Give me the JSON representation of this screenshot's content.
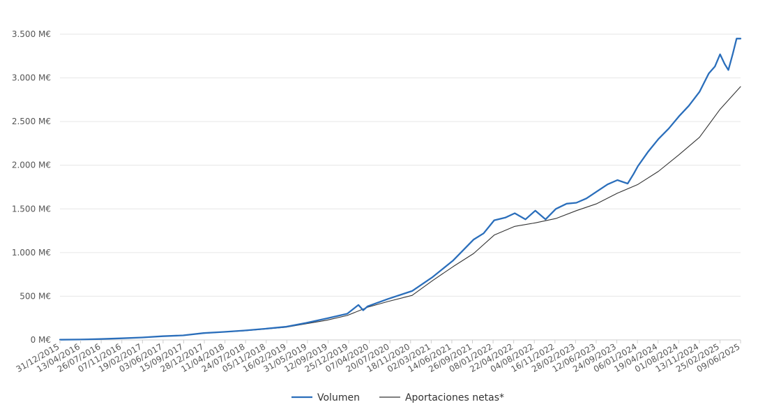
{
  "chart_data": {
    "type": "line",
    "title": "",
    "xlabel": "",
    "ylabel": "",
    "ylim": [
      0,
      3500
    ],
    "yticks": [
      0,
      500,
      1000,
      1500,
      2000,
      2500,
      3000,
      3500
    ],
    "ytick_labels": [
      "0 M€",
      "500 M€",
      "1.000 M€",
      "1.500 M€",
      "2.000 M€",
      "2.500 M€",
      "3.000 M€",
      "3.500 M€"
    ],
    "xtick_labels": [
      "31/12/2015",
      "13/04/2016",
      "26/07/2016",
      "07/11/2016",
      "19/02/2017",
      "03/06/2017",
      "15/09/2017",
      "28/12/2017",
      "11/04/2018",
      "24/07/2018",
      "05/11/2018",
      "16/02/2019",
      "31/05/2019",
      "12/09/2019",
      "25/12/2019",
      "07/04/2020",
      "20/07/2020",
      "18/11/2020",
      "02/03/2021",
      "14/06/2021",
      "26/09/2021",
      "08/01/2022",
      "22/04/2022",
      "04/08/2022",
      "16/11/2022",
      "28/02/2023",
      "12/06/2023",
      "24/09/2023",
      "06/01/2024",
      "19/04/2024",
      "01/08/2024",
      "13/11/2024",
      "25/02/2025",
      "09/06/2025"
    ],
    "grid": true,
    "legend_position": "bottom",
    "colors": {
      "volumen": "#2a6ebb",
      "aportaciones": "#333333",
      "grid": "#e6e6e6",
      "axis": "#cccccc"
    },
    "series": [
      {
        "name": "Volumen",
        "x": [
          "2015-12-31",
          "2016-04-13",
          "2016-07-26",
          "2016-11-07",
          "2017-02-19",
          "2017-06-03",
          "2017-09-15",
          "2017-12-28",
          "2018-04-11",
          "2018-07-24",
          "2018-11-05",
          "2019-02-16",
          "2019-05-31",
          "2019-09-12",
          "2019-12-25",
          "2020-02-20",
          "2020-03-15",
          "2020-04-07",
          "2020-07-20",
          "2020-11-18",
          "2021-03-02",
          "2021-06-14",
          "2021-09-26",
          "2021-11-15",
          "2022-01-08",
          "2022-03-05",
          "2022-04-22",
          "2022-06-15",
          "2022-08-04",
          "2022-09-25",
          "2022-11-16",
          "2023-01-10",
          "2023-02-28",
          "2023-04-20",
          "2023-06-12",
          "2023-08-05",
          "2023-09-24",
          "2023-11-15",
          "2023-12-15",
          "2024-01-06",
          "2024-02-25",
          "2024-04-19",
          "2024-06-10",
          "2024-08-01",
          "2024-09-20",
          "2024-11-13",
          "2024-12-30",
          "2025-01-30",
          "2025-02-25",
          "2025-03-20",
          "2025-04-08",
          "2025-05-01",
          "2025-05-20",
          "2025-06-09"
        ],
        "values": [
          2,
          5,
          10,
          18,
          28,
          42,
          52,
          78,
          92,
          108,
          128,
          150,
          195,
          245,
          300,
          400,
          340,
          385,
          470,
          560,
          720,
          910,
          1150,
          1220,
          1370,
          1400,
          1450,
          1380,
          1480,
          1380,
          1500,
          1560,
          1570,
          1620,
          1700,
          1780,
          1830,
          1790,
          1900,
          1990,
          2150,
          2300,
          2420,
          2560,
          2680,
          2840,
          3050,
          3130,
          3270,
          3160,
          3090,
          3280,
          3450,
          3450
        ]
      },
      {
        "name": "Aportaciones netas*",
        "x": [
          "2015-12-31",
          "2016-04-13",
          "2016-07-26",
          "2016-11-07",
          "2017-02-19",
          "2017-06-03",
          "2017-09-15",
          "2017-12-28",
          "2018-04-11",
          "2018-07-24",
          "2018-11-05",
          "2019-02-16",
          "2019-05-31",
          "2019-09-12",
          "2019-12-25",
          "2020-04-07",
          "2020-07-20",
          "2020-11-18",
          "2021-03-02",
          "2021-06-14",
          "2021-09-26",
          "2022-01-08",
          "2022-04-22",
          "2022-08-04",
          "2022-11-16",
          "2023-02-28",
          "2023-06-12",
          "2023-09-24",
          "2024-01-06",
          "2024-04-19",
          "2024-08-01",
          "2024-11-13",
          "2025-02-25",
          "2025-06-09"
        ],
        "values": [
          2,
          5,
          10,
          16,
          26,
          40,
          50,
          75,
          90,
          105,
          125,
          145,
          185,
          225,
          280,
          375,
          440,
          510,
          680,
          840,
          990,
          1200,
          1300,
          1340,
          1390,
          1480,
          1560,
          1680,
          1780,
          1930,
          2120,
          2320,
          2640,
          2900
        ]
      }
    ]
  }
}
